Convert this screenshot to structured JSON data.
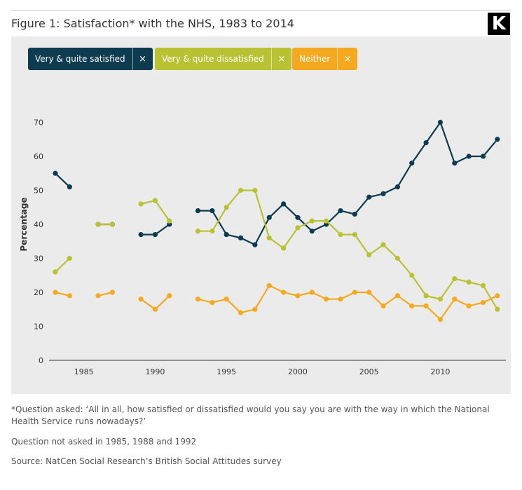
{
  "header": {
    "title": "Figure 1: Satisfaction* with the NHS, 1983 to 2014",
    "logo_letter": "K"
  },
  "legend": [
    {
      "label": "Very & quite satisfied",
      "close": "×",
      "color": "#0d3b50"
    },
    {
      "label": "Very & quite dissatisfied",
      "close": "×",
      "color": "#b8c232"
    },
    {
      "label": "Neither",
      "close": "×",
      "color": "#f5a91f"
    }
  ],
  "colors": {
    "panel": "#ebebeb",
    "satisfied": "#0d3b50",
    "dissatisfied": "#b8c232",
    "neither": "#f5a91f"
  },
  "chart_data": {
    "type": "line",
    "title": "Figure 1: Satisfaction* with the NHS, 1983 to 2014",
    "xlabel": "",
    "ylabel": "Percentage",
    "xlim": [
      1983,
      2014
    ],
    "ylim": [
      0,
      70
    ],
    "xticks": [
      1985,
      1990,
      1995,
      2000,
      2005,
      2010
    ],
    "yticks": [
      0,
      10,
      20,
      30,
      40,
      50,
      60,
      70
    ],
    "grid": false,
    "x": [
      1983,
      1984,
      1986,
      1987,
      1989,
      1990,
      1991,
      1993,
      1994,
      1995,
      1996,
      1997,
      1998,
      1999,
      2000,
      2001,
      2002,
      2003,
      2004,
      2005,
      2006,
      2007,
      2008,
      2009,
      2010,
      2011,
      2012,
      2013,
      2014
    ],
    "series": [
      {
        "name": "Very & quite satisfied",
        "color": "#0d3b50",
        "values": [
          55,
          51,
          40,
          40,
          37,
          37,
          40,
          44,
          44,
          37,
          36,
          34,
          42,
          46,
          42,
          38,
          40,
          44,
          43,
          48,
          49,
          51,
          58,
          64,
          70,
          58,
          60,
          60,
          65
        ]
      },
      {
        "name": "Very & quite dissatisfied",
        "color": "#b8c232",
        "values": [
          26,
          30,
          40,
          40,
          46,
          47,
          41,
          38,
          38,
          45,
          50,
          50,
          36,
          33,
          39,
          41,
          41,
          37,
          37,
          31,
          34,
          30,
          25,
          19,
          18,
          24,
          23,
          22,
          15
        ]
      },
      {
        "name": "Neither",
        "color": "#f5a91f",
        "values": [
          20,
          19,
          19,
          20,
          18,
          15,
          19,
          18,
          17,
          18,
          14,
          15,
          22,
          20,
          19,
          20,
          18,
          18,
          20,
          20,
          16,
          19,
          16,
          16,
          12,
          18,
          16,
          17,
          19
        ]
      }
    ]
  },
  "notes": {
    "question": "*Question asked: ‘All in all, how satisfied or dissatisfied would you say you are with the way in which the National Health Service runs nowadays?’",
    "not_asked": "Question not asked in 1985, 1988 and 1992",
    "source": "Source: NatCen Social Research’s British Social Attitudes survey"
  }
}
